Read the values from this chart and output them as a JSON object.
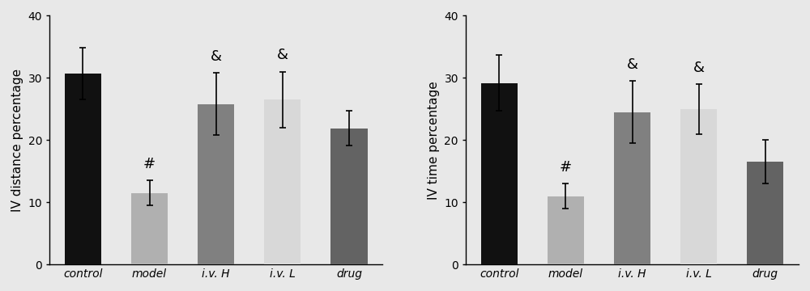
{
  "left_chart": {
    "ylabel": "IV distance percentage",
    "categories": [
      "control",
      "model",
      "i.v. H",
      "i.v. L",
      "drug"
    ],
    "values": [
      30.7,
      11.5,
      25.8,
      26.5,
      21.9
    ],
    "errors": [
      4.2,
      2.0,
      5.0,
      4.5,
      2.8
    ],
    "bar_colors": [
      "#111111",
      "#b0b0b0",
      "#808080",
      "#d8d8d8",
      "#636363"
    ],
    "annotations": [
      "",
      "#",
      "&",
      "&",
      ""
    ],
    "ylim": [
      0,
      40
    ],
    "yticks": [
      0,
      10,
      20,
      30,
      40
    ]
  },
  "right_chart": {
    "ylabel": "IV time percentage",
    "categories": [
      "control",
      "model",
      "i.v. H",
      "i.v. L",
      "drug"
    ],
    "values": [
      29.2,
      11.0,
      24.5,
      25.0,
      16.5
    ],
    "errors": [
      4.5,
      2.0,
      5.0,
      4.0,
      3.5
    ],
    "bar_colors": [
      "#111111",
      "#b0b0b0",
      "#808080",
      "#d8d8d8",
      "#636363"
    ],
    "annotations": [
      "",
      "#",
      "&",
      "&",
      ""
    ],
    "ylim": [
      0,
      40
    ],
    "yticks": [
      0,
      10,
      20,
      30,
      40
    ]
  },
  "annotation_fontsize": 13,
  "tick_label_fontsize": 10,
  "ylabel_fontsize": 11,
  "bar_width": 0.55,
  "capsize": 3,
  "background_color": "#e8e8e8",
  "fig_background_color": "#e8e8e8"
}
